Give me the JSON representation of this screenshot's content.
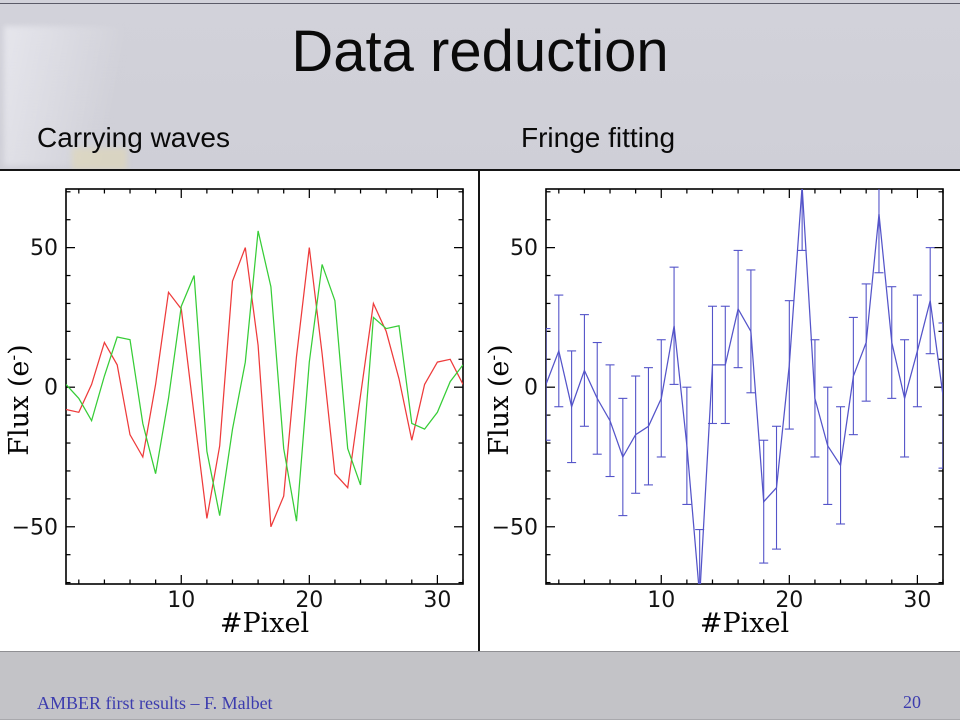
{
  "slide": {
    "title": "Data reduction",
    "footer_left": "AMBER first results – F. Malbet",
    "footer_page": "20"
  },
  "chart_data": [
    {
      "type": "line",
      "title": "Carrying waves",
      "xlabel": "#Pixel",
      "ylabel": "Flux (e-)",
      "ylabel_main": "Flux (e",
      "ylabel_sup": "-",
      "ylabel_close": ")",
      "xlim": [
        1,
        32
      ],
      "ylim": [
        -70.5,
        71
      ],
      "xticks": [
        {
          "v": 10,
          "label": "10"
        },
        {
          "v": 20,
          "label": "20"
        },
        {
          "v": 30,
          "label": "30"
        }
      ],
      "yticks": [
        {
          "v": -50,
          "label": "−50"
        },
        {
          "v": 0,
          "label": "0"
        },
        {
          "v": 50,
          "label": "50"
        }
      ],
      "xminor_step": 2,
      "yminor_step": 10,
      "grid": false,
      "legend": "none",
      "x": [
        1,
        2,
        3,
        4,
        5,
        6,
        7,
        8,
        9,
        10,
        11,
        12,
        13,
        14,
        15,
        16,
        17,
        18,
        19,
        20,
        21,
        22,
        23,
        24,
        25,
        26,
        27,
        28,
        29,
        30,
        31,
        32
      ],
      "series": [
        {
          "name": "interferogram-red",
          "color": "#ee3b3b",
          "values": [
            -8,
            -9,
            1,
            16,
            8,
            -17,
            -25,
            1,
            34,
            28,
            -10,
            -47,
            -21,
            38,
            50,
            15,
            -50,
            -39,
            11,
            50,
            12,
            -31,
            -36,
            -3,
            30,
            20,
            3,
            -19,
            1,
            9,
            10,
            1
          ]
        },
        {
          "name": "interferogram-green",
          "color": "#37cd37",
          "values": [
            1,
            -4,
            -12,
            4,
            18,
            17,
            -13,
            -31,
            -4,
            29,
            40,
            -23,
            -46,
            -15,
            9,
            56,
            36,
            -22,
            -48,
            9,
            44,
            31,
            -22,
            -35,
            25,
            21,
            22,
            -13,
            -15,
            -9,
            2,
            8
          ]
        }
      ]
    },
    {
      "type": "line",
      "title": "Fringe fitting",
      "xlabel": "#Pixel",
      "ylabel": "Flux (e-)",
      "ylabel_main": "Flux (e",
      "ylabel_sup": "-",
      "ylabel_close": ")",
      "xlim": [
        1,
        32
      ],
      "ylim": [
        -70.5,
        71
      ],
      "xticks": [
        {
          "v": 10,
          "label": "10"
        },
        {
          "v": 20,
          "label": "20"
        },
        {
          "v": 30,
          "label": "30"
        }
      ],
      "yticks": [
        {
          "v": -50,
          "label": "−50"
        },
        {
          "v": 0,
          "label": "0"
        },
        {
          "v": 50,
          "label": "50"
        }
      ],
      "xminor_step": 2,
      "yminor_step": 10,
      "grid": false,
      "legend": "none",
      "x": [
        1,
        2,
        3,
        4,
        5,
        6,
        7,
        8,
        9,
        10,
        11,
        12,
        13,
        14,
        15,
        16,
        17,
        18,
        19,
        20,
        21,
        22,
        23,
        24,
        25,
        26,
        27,
        28,
        29,
        30,
        31,
        32
      ],
      "series": [
        {
          "name": "fitted-fringe-blue",
          "color": "#5454c9",
          "values": [
            1,
            13,
            -7,
            6,
            -4,
            -12,
            -25,
            -17,
            -14,
            -4,
            22,
            -21,
            -75,
            8,
            8,
            28,
            20,
            -41,
            -36,
            8,
            72,
            -4,
            -21,
            -28,
            4,
            16,
            62,
            16,
            -4,
            13,
            31,
            -3
          ],
          "errors": [
            20,
            20,
            20,
            20,
            20,
            20,
            21,
            21,
            21,
            21,
            21,
            21,
            24,
            21,
            21,
            21,
            22,
            22,
            22,
            23,
            23,
            21,
            21,
            21,
            21,
            21,
            21,
            20,
            21,
            20,
            19,
            26
          ]
        }
      ]
    }
  ]
}
